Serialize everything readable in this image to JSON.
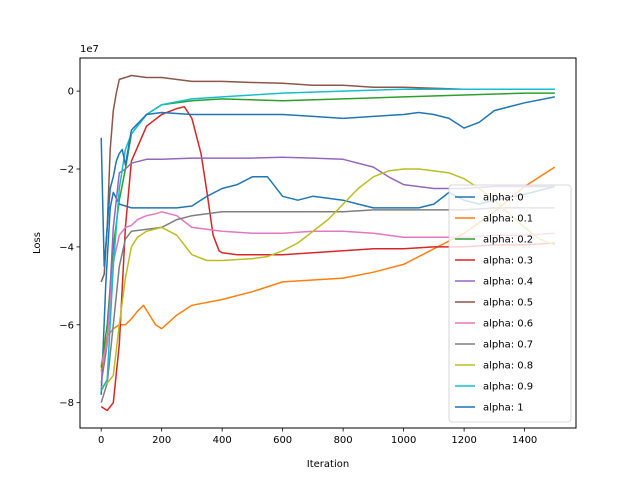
{
  "chart_data": {
    "type": "line",
    "title": "",
    "xlabel": "Iteration",
    "ylabel": "Loss",
    "y_offset_label": "1e7",
    "xlim": [
      -70,
      1570
    ],
    "ylim": [
      -8.65,
      0.85
    ],
    "xticks": [
      0,
      200,
      400,
      600,
      800,
      1000,
      1200,
      1400
    ],
    "xtick_labels": [
      "0",
      "200",
      "400",
      "600",
      "800",
      "1000",
      "1200",
      "1400"
    ],
    "yticks": [
      0,
      -2,
      -4,
      -6,
      -8
    ],
    "ytick_labels": [
      "0",
      "−2",
      "−4",
      "−6",
      "−8"
    ],
    "grid": false,
    "legend_position": "center-right",
    "series": [
      {
        "name": "alpha: 0",
        "color": "#1f77b4",
        "points": [
          [
            0,
            -7.8
          ],
          [
            15,
            -5.0
          ],
          [
            30,
            -3.0
          ],
          [
            40,
            -2.6
          ],
          [
            60,
            -2.9
          ],
          [
            100,
            -3.0
          ],
          [
            150,
            -3.0
          ],
          [
            200,
            -3.0
          ],
          [
            250,
            -3.0
          ],
          [
            300,
            -2.95
          ],
          [
            350,
            -2.7
          ],
          [
            400,
            -2.5
          ],
          [
            450,
            -2.4
          ],
          [
            500,
            -2.2
          ],
          [
            550,
            -2.2
          ],
          [
            600,
            -2.7
          ],
          [
            650,
            -2.8
          ],
          [
            700,
            -2.7
          ],
          [
            750,
            -2.75
          ],
          [
            800,
            -2.8
          ],
          [
            850,
            -2.9
          ],
          [
            900,
            -3.0
          ],
          [
            950,
            -3.0
          ],
          [
            1000,
            -3.0
          ],
          [
            1050,
            -3.0
          ],
          [
            1100,
            -2.9
          ],
          [
            1150,
            -2.6
          ],
          [
            1200,
            -2.8
          ],
          [
            1250,
            -2.9
          ],
          [
            1300,
            -2.8
          ],
          [
            1400,
            -2.65
          ],
          [
            1500,
            -2.45
          ]
        ]
      },
      {
        "name": "alpha: 0.1",
        "color": "#ff7f0e",
        "points": [
          [
            0,
            -7.2
          ],
          [
            20,
            -6.3
          ],
          [
            40,
            -6.1
          ],
          [
            60,
            -6.0
          ],
          [
            80,
            -6.0
          ],
          [
            100,
            -5.85
          ],
          [
            120,
            -5.65
          ],
          [
            140,
            -5.5
          ],
          [
            160,
            -5.75
          ],
          [
            180,
            -6.0
          ],
          [
            200,
            -6.1
          ],
          [
            250,
            -5.75
          ],
          [
            300,
            -5.5
          ],
          [
            400,
            -5.35
          ],
          [
            500,
            -5.15
          ],
          [
            600,
            -4.9
          ],
          [
            700,
            -4.85
          ],
          [
            800,
            -4.8
          ],
          [
            900,
            -4.65
          ],
          [
            1000,
            -4.45
          ],
          [
            1100,
            -4.05
          ],
          [
            1200,
            -3.65
          ],
          [
            1300,
            -3.1
          ],
          [
            1400,
            -2.45
          ],
          [
            1500,
            -1.95
          ]
        ]
      },
      {
        "name": "alpha: 0.2",
        "color": "#2ca02c",
        "points": [
          [
            0,
            -7.1
          ],
          [
            20,
            -6.0
          ],
          [
            40,
            -4.0
          ],
          [
            60,
            -2.8
          ],
          [
            80,
            -2.0
          ],
          [
            100,
            -1.1
          ],
          [
            150,
            -0.6
          ],
          [
            200,
            -0.35
          ],
          [
            250,
            -0.3
          ],
          [
            300,
            -0.25
          ],
          [
            400,
            -0.2
          ],
          [
            600,
            -0.25
          ],
          [
            800,
            -0.2
          ],
          [
            1000,
            -0.15
          ],
          [
            1200,
            -0.1
          ],
          [
            1400,
            -0.05
          ],
          [
            1500,
            -0.05
          ]
        ]
      },
      {
        "name": "alpha: 0.3",
        "color": "#d62728",
        "points": [
          [
            0,
            -8.1
          ],
          [
            20,
            -8.2
          ],
          [
            40,
            -8.0
          ],
          [
            60,
            -6.5
          ],
          [
            80,
            -3.5
          ],
          [
            100,
            -1.8
          ],
          [
            150,
            -0.9
          ],
          [
            200,
            -0.6
          ],
          [
            250,
            -0.45
          ],
          [
            275,
            -0.4
          ],
          [
            300,
            -0.7
          ],
          [
            330,
            -1.6
          ],
          [
            350,
            -2.6
          ],
          [
            370,
            -3.7
          ],
          [
            390,
            -4.1
          ],
          [
            400,
            -4.15
          ],
          [
            450,
            -4.2
          ],
          [
            500,
            -4.2
          ],
          [
            600,
            -4.2
          ],
          [
            700,
            -4.15
          ],
          [
            800,
            -4.1
          ],
          [
            900,
            -4.05
          ],
          [
            1000,
            -4.05
          ],
          [
            1100,
            -4.0
          ],
          [
            1200,
            -4.0
          ],
          [
            1300,
            -3.95
          ],
          [
            1400,
            -3.95
          ],
          [
            1500,
            -3.9
          ]
        ]
      },
      {
        "name": "alpha: 0.4",
        "color": "#9467bd",
        "points": [
          [
            0,
            -7.5
          ],
          [
            20,
            -6.5
          ],
          [
            40,
            -3.5
          ],
          [
            60,
            -2.1
          ],
          [
            80,
            -2.0
          ],
          [
            100,
            -1.85
          ],
          [
            150,
            -1.75
          ],
          [
            200,
            -1.75
          ],
          [
            300,
            -1.72
          ],
          [
            400,
            -1.72
          ],
          [
            500,
            -1.72
          ],
          [
            600,
            -1.7
          ],
          [
            700,
            -1.72
          ],
          [
            800,
            -1.75
          ],
          [
            900,
            -1.95
          ],
          [
            950,
            -2.2
          ],
          [
            1000,
            -2.4
          ],
          [
            1100,
            -2.5
          ],
          [
            1200,
            -2.5
          ],
          [
            1300,
            -2.45
          ],
          [
            1400,
            -2.45
          ],
          [
            1500,
            -2.45
          ]
        ]
      },
      {
        "name": "alpha: 0.5",
        "color": "#8c564b",
        "points": [
          [
            0,
            -4.9
          ],
          [
            10,
            -4.7
          ],
          [
            20,
            -3.5
          ],
          [
            30,
            -1.5
          ],
          [
            40,
            -0.5
          ],
          [
            50,
            -0.05
          ],
          [
            60,
            0.3
          ],
          [
            80,
            0.35
          ],
          [
            100,
            0.4
          ],
          [
            150,
            0.35
          ],
          [
            200,
            0.35
          ],
          [
            300,
            0.25
          ],
          [
            400,
            0.25
          ],
          [
            500,
            0.22
          ],
          [
            600,
            0.2
          ],
          [
            700,
            0.15
          ],
          [
            800,
            0.15
          ],
          [
            900,
            0.1
          ],
          [
            1000,
            0.1
          ],
          [
            1200,
            0.05
          ],
          [
            1400,
            0.05
          ],
          [
            1500,
            0.05
          ]
        ]
      },
      {
        "name": "alpha: 0.6",
        "color": "#e377c2",
        "points": [
          [
            0,
            -7.0
          ],
          [
            20,
            -6.5
          ],
          [
            40,
            -4.4
          ],
          [
            60,
            -3.7
          ],
          [
            80,
            -3.5
          ],
          [
            100,
            -3.45
          ],
          [
            120,
            -3.3
          ],
          [
            150,
            -3.2
          ],
          [
            180,
            -3.15
          ],
          [
            200,
            -3.1
          ],
          [
            250,
            -3.2
          ],
          [
            300,
            -3.5
          ],
          [
            400,
            -3.6
          ],
          [
            500,
            -3.65
          ],
          [
            600,
            -3.65
          ],
          [
            700,
            -3.6
          ],
          [
            800,
            -3.6
          ],
          [
            900,
            -3.65
          ],
          [
            1000,
            -3.75
          ],
          [
            1100,
            -3.75
          ],
          [
            1200,
            -3.75
          ],
          [
            1300,
            -3.7
          ],
          [
            1400,
            -3.7
          ],
          [
            1500,
            -3.65
          ]
        ]
      },
      {
        "name": "alpha: 0.7",
        "color": "#7f7f7f",
        "points": [
          [
            0,
            -8.0
          ],
          [
            20,
            -7.5
          ],
          [
            40,
            -6.0
          ],
          [
            60,
            -4.5
          ],
          [
            80,
            -3.8
          ],
          [
            100,
            -3.6
          ],
          [
            200,
            -3.5
          ],
          [
            250,
            -3.3
          ],
          [
            300,
            -3.2
          ],
          [
            350,
            -3.15
          ],
          [
            400,
            -3.1
          ],
          [
            500,
            -3.1
          ],
          [
            600,
            -3.1
          ],
          [
            700,
            -3.1
          ],
          [
            800,
            -3.1
          ],
          [
            900,
            -3.05
          ],
          [
            1000,
            -3.05
          ],
          [
            1100,
            -3.05
          ],
          [
            1200,
            -3.05
          ],
          [
            1300,
            -3.0
          ],
          [
            1400,
            -3.0
          ],
          [
            1500,
            -3.0
          ]
        ]
      },
      {
        "name": "alpha: 0.8",
        "color": "#bcbd22",
        "points": [
          [
            0,
            -7.6
          ],
          [
            20,
            -7.5
          ],
          [
            40,
            -7.3
          ],
          [
            60,
            -6.0
          ],
          [
            80,
            -4.8
          ],
          [
            100,
            -4.0
          ],
          [
            120,
            -3.75
          ],
          [
            150,
            -3.6
          ],
          [
            200,
            -3.5
          ],
          [
            250,
            -3.7
          ],
          [
            300,
            -4.2
          ],
          [
            350,
            -4.35
          ],
          [
            400,
            -4.35
          ],
          [
            500,
            -4.3
          ],
          [
            550,
            -4.25
          ],
          [
            600,
            -4.1
          ],
          [
            650,
            -3.9
          ],
          [
            700,
            -3.6
          ],
          [
            750,
            -3.3
          ],
          [
            800,
            -2.9
          ],
          [
            850,
            -2.5
          ],
          [
            900,
            -2.2
          ],
          [
            950,
            -2.05
          ],
          [
            1000,
            -2.0
          ],
          [
            1050,
            -2.0
          ],
          [
            1100,
            -2.05
          ],
          [
            1150,
            -2.1
          ],
          [
            1200,
            -2.25
          ],
          [
            1250,
            -2.5
          ],
          [
            1300,
            -2.8
          ],
          [
            1350,
            -3.15
          ],
          [
            1400,
            -3.5
          ],
          [
            1450,
            -3.8
          ],
          [
            1500,
            -3.95
          ]
        ]
      },
      {
        "name": "alpha: 0.9",
        "color": "#17becf",
        "points": [
          [
            0,
            -7.7
          ],
          [
            20,
            -7.4
          ],
          [
            40,
            -4.5
          ],
          [
            60,
            -2.5
          ],
          [
            80,
            -1.5
          ],
          [
            100,
            -1.1
          ],
          [
            150,
            -0.6
          ],
          [
            200,
            -0.35
          ],
          [
            300,
            -0.2
          ],
          [
            400,
            -0.15
          ],
          [
            500,
            -0.1
          ],
          [
            600,
            -0.05
          ],
          [
            800,
            0.0
          ],
          [
            1000,
            0.05
          ],
          [
            1200,
            0.05
          ],
          [
            1400,
            0.05
          ],
          [
            1500,
            0.05
          ]
        ]
      },
      {
        "name": "alpha: 1",
        "color": "#1f77b4",
        "points": [
          [
            0,
            -1.2
          ],
          [
            10,
            -4.5
          ],
          [
            20,
            -3.5
          ],
          [
            30,
            -2.5
          ],
          [
            40,
            -2.2
          ],
          [
            50,
            -1.8
          ],
          [
            60,
            -1.6
          ],
          [
            70,
            -1.5
          ],
          [
            80,
            -1.9
          ],
          [
            100,
            -1.0
          ],
          [
            150,
            -0.6
          ],
          [
            200,
            -0.55
          ],
          [
            300,
            -0.6
          ],
          [
            400,
            -0.6
          ],
          [
            500,
            -0.6
          ],
          [
            600,
            -0.6
          ],
          [
            700,
            -0.65
          ],
          [
            800,
            -0.7
          ],
          [
            900,
            -0.65
          ],
          [
            1000,
            -0.6
          ],
          [
            1050,
            -0.55
          ],
          [
            1100,
            -0.6
          ],
          [
            1150,
            -0.7
          ],
          [
            1200,
            -0.95
          ],
          [
            1250,
            -0.8
          ],
          [
            1300,
            -0.5
          ],
          [
            1400,
            -0.3
          ],
          [
            1500,
            -0.15
          ]
        ]
      }
    ]
  }
}
